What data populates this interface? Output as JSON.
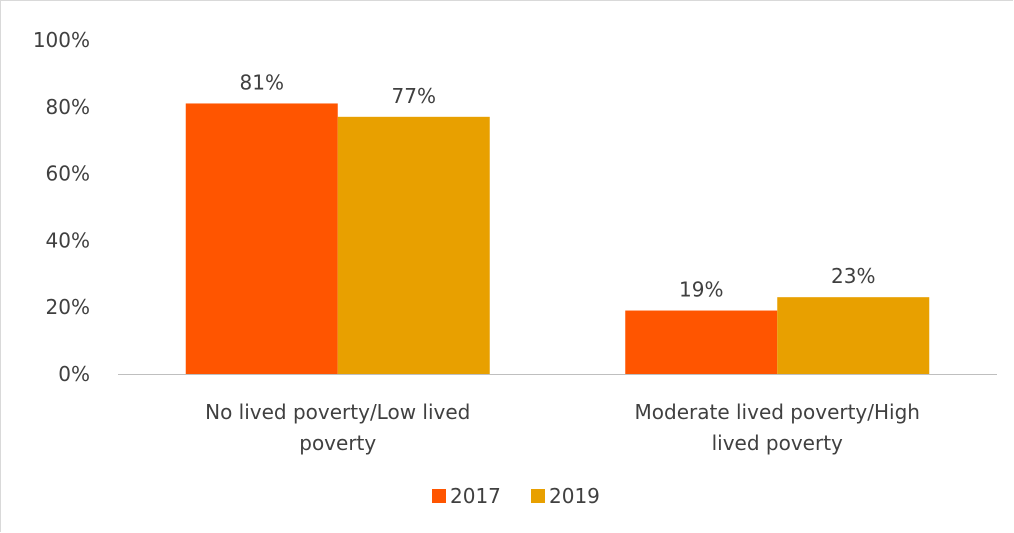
{
  "chart_data": {
    "type": "bar",
    "categories": [
      [
        "No lived poverty/Low lived",
        "poverty"
      ],
      [
        "Moderate lived poverty/High",
        "lived poverty"
      ]
    ],
    "series": [
      {
        "name": "2017",
        "values": [
          81,
          19
        ],
        "labels": [
          "81%",
          "19%"
        ],
        "color": "#FF5500"
      },
      {
        "name": "2019",
        "values": [
          77,
          23
        ],
        "labels": [
          "77%",
          "23%"
        ],
        "color": "#E8A000"
      }
    ],
    "yticks": [
      {
        "value": 0,
        "label": "0%"
      },
      {
        "value": 20,
        "label": "20%"
      },
      {
        "value": 40,
        "label": "40%"
      },
      {
        "value": 60,
        "label": "60%"
      },
      {
        "value": 80,
        "label": "80%"
      },
      {
        "value": 100,
        "label": "100%"
      }
    ],
    "ylim": [
      0,
      100
    ],
    "grid": false,
    "legend_position": "bottom",
    "axis_color": "#bfbfbf"
  }
}
